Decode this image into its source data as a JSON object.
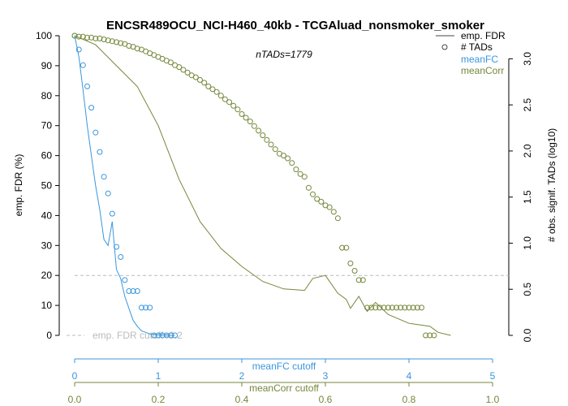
{
  "chart_data": {
    "type": "line",
    "title": "ENCSR489OCU_NCI-H460_40kb - TCGAluad_nonsmoker_smoker",
    "annotation": "nTADs=1779",
    "colors": {
      "fc": "#3a96dd",
      "corr": "#74873a",
      "fdr": "#000000",
      "cutoff": "#bbbbbb"
    },
    "left_axis": {
      "label": "emp. FDR (%)",
      "range": [
        0,
        100
      ],
      "ticks": [
        0,
        10,
        20,
        30,
        40,
        50,
        60,
        70,
        80,
        90,
        100
      ]
    },
    "right_axis": {
      "label": "# obs. signif. TADs (log10)",
      "range": [
        0,
        3.25
      ],
      "ticks": [
        "0.0",
        "0.5",
        "1.0",
        "1.5",
        "2.0",
        "2.5",
        "3.0"
      ]
    },
    "meanFC_axis": {
      "label": "meanFC cutoff",
      "range": [
        0,
        5
      ],
      "ticks": [
        "0",
        "1",
        "2",
        "3",
        "4",
        "5"
      ]
    },
    "meanCorr_axis": {
      "label": "meanCorr cutoff",
      "range": [
        0,
        1
      ],
      "ticks": [
        "0.0",
        "0.2",
        "0.4",
        "0.6",
        "0.8",
        "1.0"
      ]
    },
    "legend": {
      "fdr": "emp. FDR",
      "tads": "# TADs",
      "fc": "meanFC",
      "corr": "meanCorr"
    },
    "fdr_cutoff": {
      "value": 20,
      "label": "emp. FDR cutoff=0.2"
    },
    "series": [
      {
        "name": "meanFC FDR",
        "axis": "meanFC",
        "kind": "line",
        "x": [
          0,
          0.05,
          0.1,
          0.15,
          0.2,
          0.25,
          0.3,
          0.35,
          0.4,
          0.45,
          0.5,
          0.55,
          0.6,
          0.65,
          0.7,
          0.75,
          0.8,
          0.85,
          0.9,
          0.95,
          1.0,
          1.05,
          1.1,
          1.15,
          1.2
        ],
        "y": [
          100,
          93,
          82,
          70,
          60,
          50,
          42,
          32,
          30,
          38,
          22,
          19,
          13,
          9,
          5,
          3,
          1.5,
          1,
          0.5,
          0.3,
          0.2,
          0.1,
          0.05,
          0,
          0
        ]
      },
      {
        "name": "meanFC # TADs",
        "axis": "meanFC",
        "kind": "points",
        "x": [
          0,
          0.05,
          0.1,
          0.15,
          0.2,
          0.25,
          0.3,
          0.35,
          0.4,
          0.45,
          0.5,
          0.55,
          0.6,
          0.65,
          0.7,
          0.75,
          0.8,
          0.85,
          0.9,
          0.95,
          1.0,
          1.05,
          1.1,
          1.15,
          1.2
        ],
        "y": [
          3.25,
          3.1,
          2.93,
          2.7,
          2.47,
          2.2,
          1.99,
          1.72,
          1.54,
          1.32,
          0.96,
          0.85,
          0.6,
          0.48,
          0.48,
          0.48,
          0.3,
          0.3,
          0.3,
          0,
          0,
          0,
          0,
          0,
          0
        ]
      },
      {
        "name": "meanCorr FDR",
        "axis": "meanCorr",
        "kind": "line",
        "x": [
          0,
          0.05,
          0.1,
          0.15,
          0.2,
          0.25,
          0.3,
          0.35,
          0.4,
          0.45,
          0.5,
          0.55,
          0.57,
          0.6,
          0.63,
          0.65,
          0.66,
          0.68,
          0.7,
          0.72,
          0.75,
          0.8,
          0.85,
          0.87,
          0.9
        ],
        "y": [
          100,
          97,
          90,
          83,
          70,
          52,
          38,
          29,
          23,
          18,
          15.5,
          15,
          19,
          20,
          14,
          12,
          9,
          13,
          8,
          11,
          7,
          4,
          3,
          1,
          0
        ]
      },
      {
        "name": "meanCorr # TADs",
        "axis": "meanCorr",
        "kind": "points",
        "x": [
          0,
          0.01,
          0.02,
          0.03,
          0.04,
          0.05,
          0.06,
          0.07,
          0.08,
          0.09,
          0.1,
          0.11,
          0.12,
          0.13,
          0.14,
          0.15,
          0.16,
          0.17,
          0.18,
          0.19,
          0.2,
          0.21,
          0.22,
          0.23,
          0.24,
          0.25,
          0.26,
          0.27,
          0.28,
          0.29,
          0.3,
          0.31,
          0.32,
          0.33,
          0.34,
          0.35,
          0.36,
          0.37,
          0.38,
          0.39,
          0.4,
          0.41,
          0.42,
          0.43,
          0.44,
          0.45,
          0.46,
          0.47,
          0.48,
          0.49,
          0.5,
          0.51,
          0.52,
          0.53,
          0.54,
          0.55,
          0.56,
          0.57,
          0.58,
          0.59,
          0.6,
          0.61,
          0.62,
          0.63,
          0.64,
          0.65,
          0.66,
          0.67,
          0.68,
          0.69,
          0.7,
          0.71,
          0.72,
          0.73,
          0.74,
          0.75,
          0.76,
          0.77,
          0.78,
          0.79,
          0.8,
          0.81,
          0.82,
          0.83,
          0.84,
          0.85,
          0.86
        ],
        "y": [
          3.25,
          3.24,
          3.24,
          3.23,
          3.23,
          3.22,
          3.22,
          3.21,
          3.2,
          3.19,
          3.18,
          3.17,
          3.16,
          3.14,
          3.13,
          3.11,
          3.1,
          3.08,
          3.06,
          3.04,
          3.02,
          3.0,
          2.98,
          2.96,
          2.93,
          2.91,
          2.88,
          2.85,
          2.82,
          2.8,
          2.77,
          2.74,
          2.7,
          2.67,
          2.64,
          2.6,
          2.56,
          2.53,
          2.49,
          2.45,
          2.4,
          2.36,
          2.32,
          2.27,
          2.22,
          2.17,
          2.12,
          2.07,
          2.02,
          1.97,
          1.95,
          1.92,
          1.87,
          1.8,
          1.75,
          1.72,
          1.6,
          1.53,
          1.48,
          1.45,
          1.41,
          1.39,
          1.34,
          1.27,
          0.95,
          0.95,
          0.78,
          0.7,
          0.6,
          0.6,
          0.3,
          0.3,
          0.3,
          0.3,
          0.3,
          0.3,
          0.3,
          0.3,
          0.3,
          0.3,
          0.3,
          0.3,
          0.3,
          0.3,
          0,
          0,
          0
        ]
      }
    ]
  }
}
